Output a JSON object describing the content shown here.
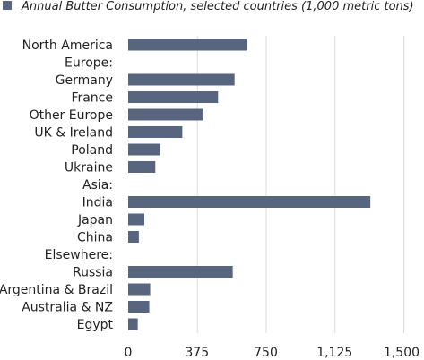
{
  "colors": {
    "bar": "#57657f",
    "grid": "#dcdcdc",
    "text": "#222222"
  },
  "chart_data": {
    "type": "bar",
    "orientation": "horizontal",
    "legend": {
      "label": "Annual Butter Consumption, selected countries (1,000 metric tons)",
      "position": "top-left"
    },
    "categories": [
      "North America",
      "Europe:",
      "Germany",
      "France",
      "Other Europe",
      "UK & Ireland",
      "Poland",
      "Ukraine",
      "Asia:",
      "India",
      "Japan",
      "China",
      "Elsewhere:",
      "Russia",
      "Argentina & Brazil",
      "Australia & NZ",
      "Egypt"
    ],
    "series": [
      {
        "name": "Annual Butter Consumption, selected countries (1,000 metric tons)",
        "values": [
          645,
          null,
          580,
          490,
          410,
          295,
          175,
          148,
          null,
          1320,
          88,
          58,
          null,
          570,
          120,
          115,
          52
        ]
      }
    ],
    "xlim": [
      0,
      1500
    ],
    "xticks": [
      "0",
      "375",
      "750",
      "1,125",
      "1,500"
    ],
    "xtick_values": [
      0,
      375,
      750,
      1125,
      1500
    ],
    "grid": true
  }
}
